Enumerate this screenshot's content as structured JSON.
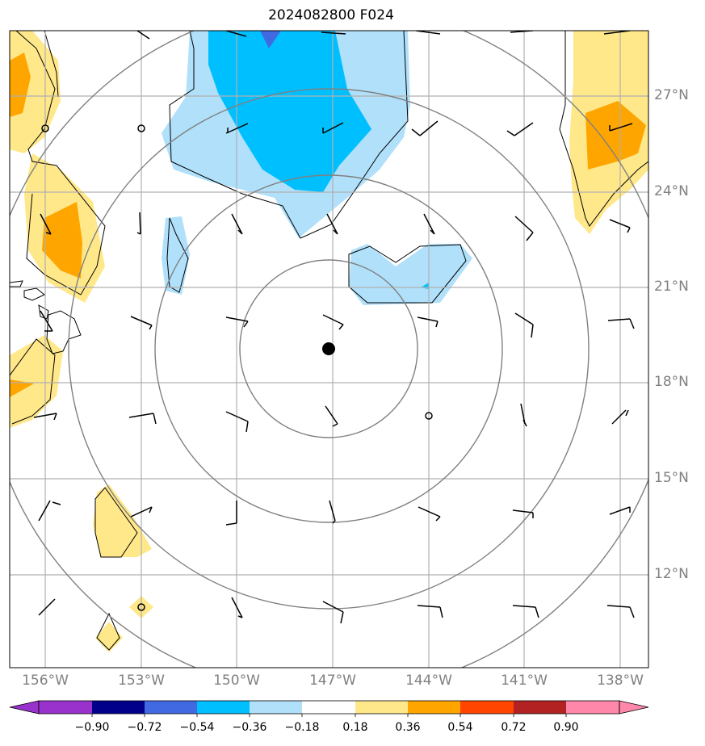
{
  "title": "2024082800 F024",
  "latitude_labels": [
    "27°N",
    "24°N",
    "21°N",
    "18°N",
    "15°N",
    "12°N"
  ],
  "longitude_labels": [
    "156°W",
    "153°W",
    "150°W",
    "147°W",
    "144°W",
    "141°W",
    "138°W"
  ],
  "colorbar": {
    "labels": [
      "−0.90",
      "−0.72",
      "−0.54",
      "−0.36",
      "−0.18",
      "0.18",
      "0.36",
      "0.54",
      "0.72",
      "0.90"
    ],
    "colors": [
      "#9932cc",
      "#00008b",
      "#4169e1",
      "#00bfff",
      "#b0e0fa",
      "#ffffff",
      "#ffe88a",
      "#ffa500",
      "#ff4500",
      "#b22222",
      "#ff88aa"
    ]
  },
  "map": {
    "center_marker": "storm-center-dot",
    "range_rings": 4,
    "gridline_color": "#b0b0b0",
    "ring_color": "#808080"
  }
}
